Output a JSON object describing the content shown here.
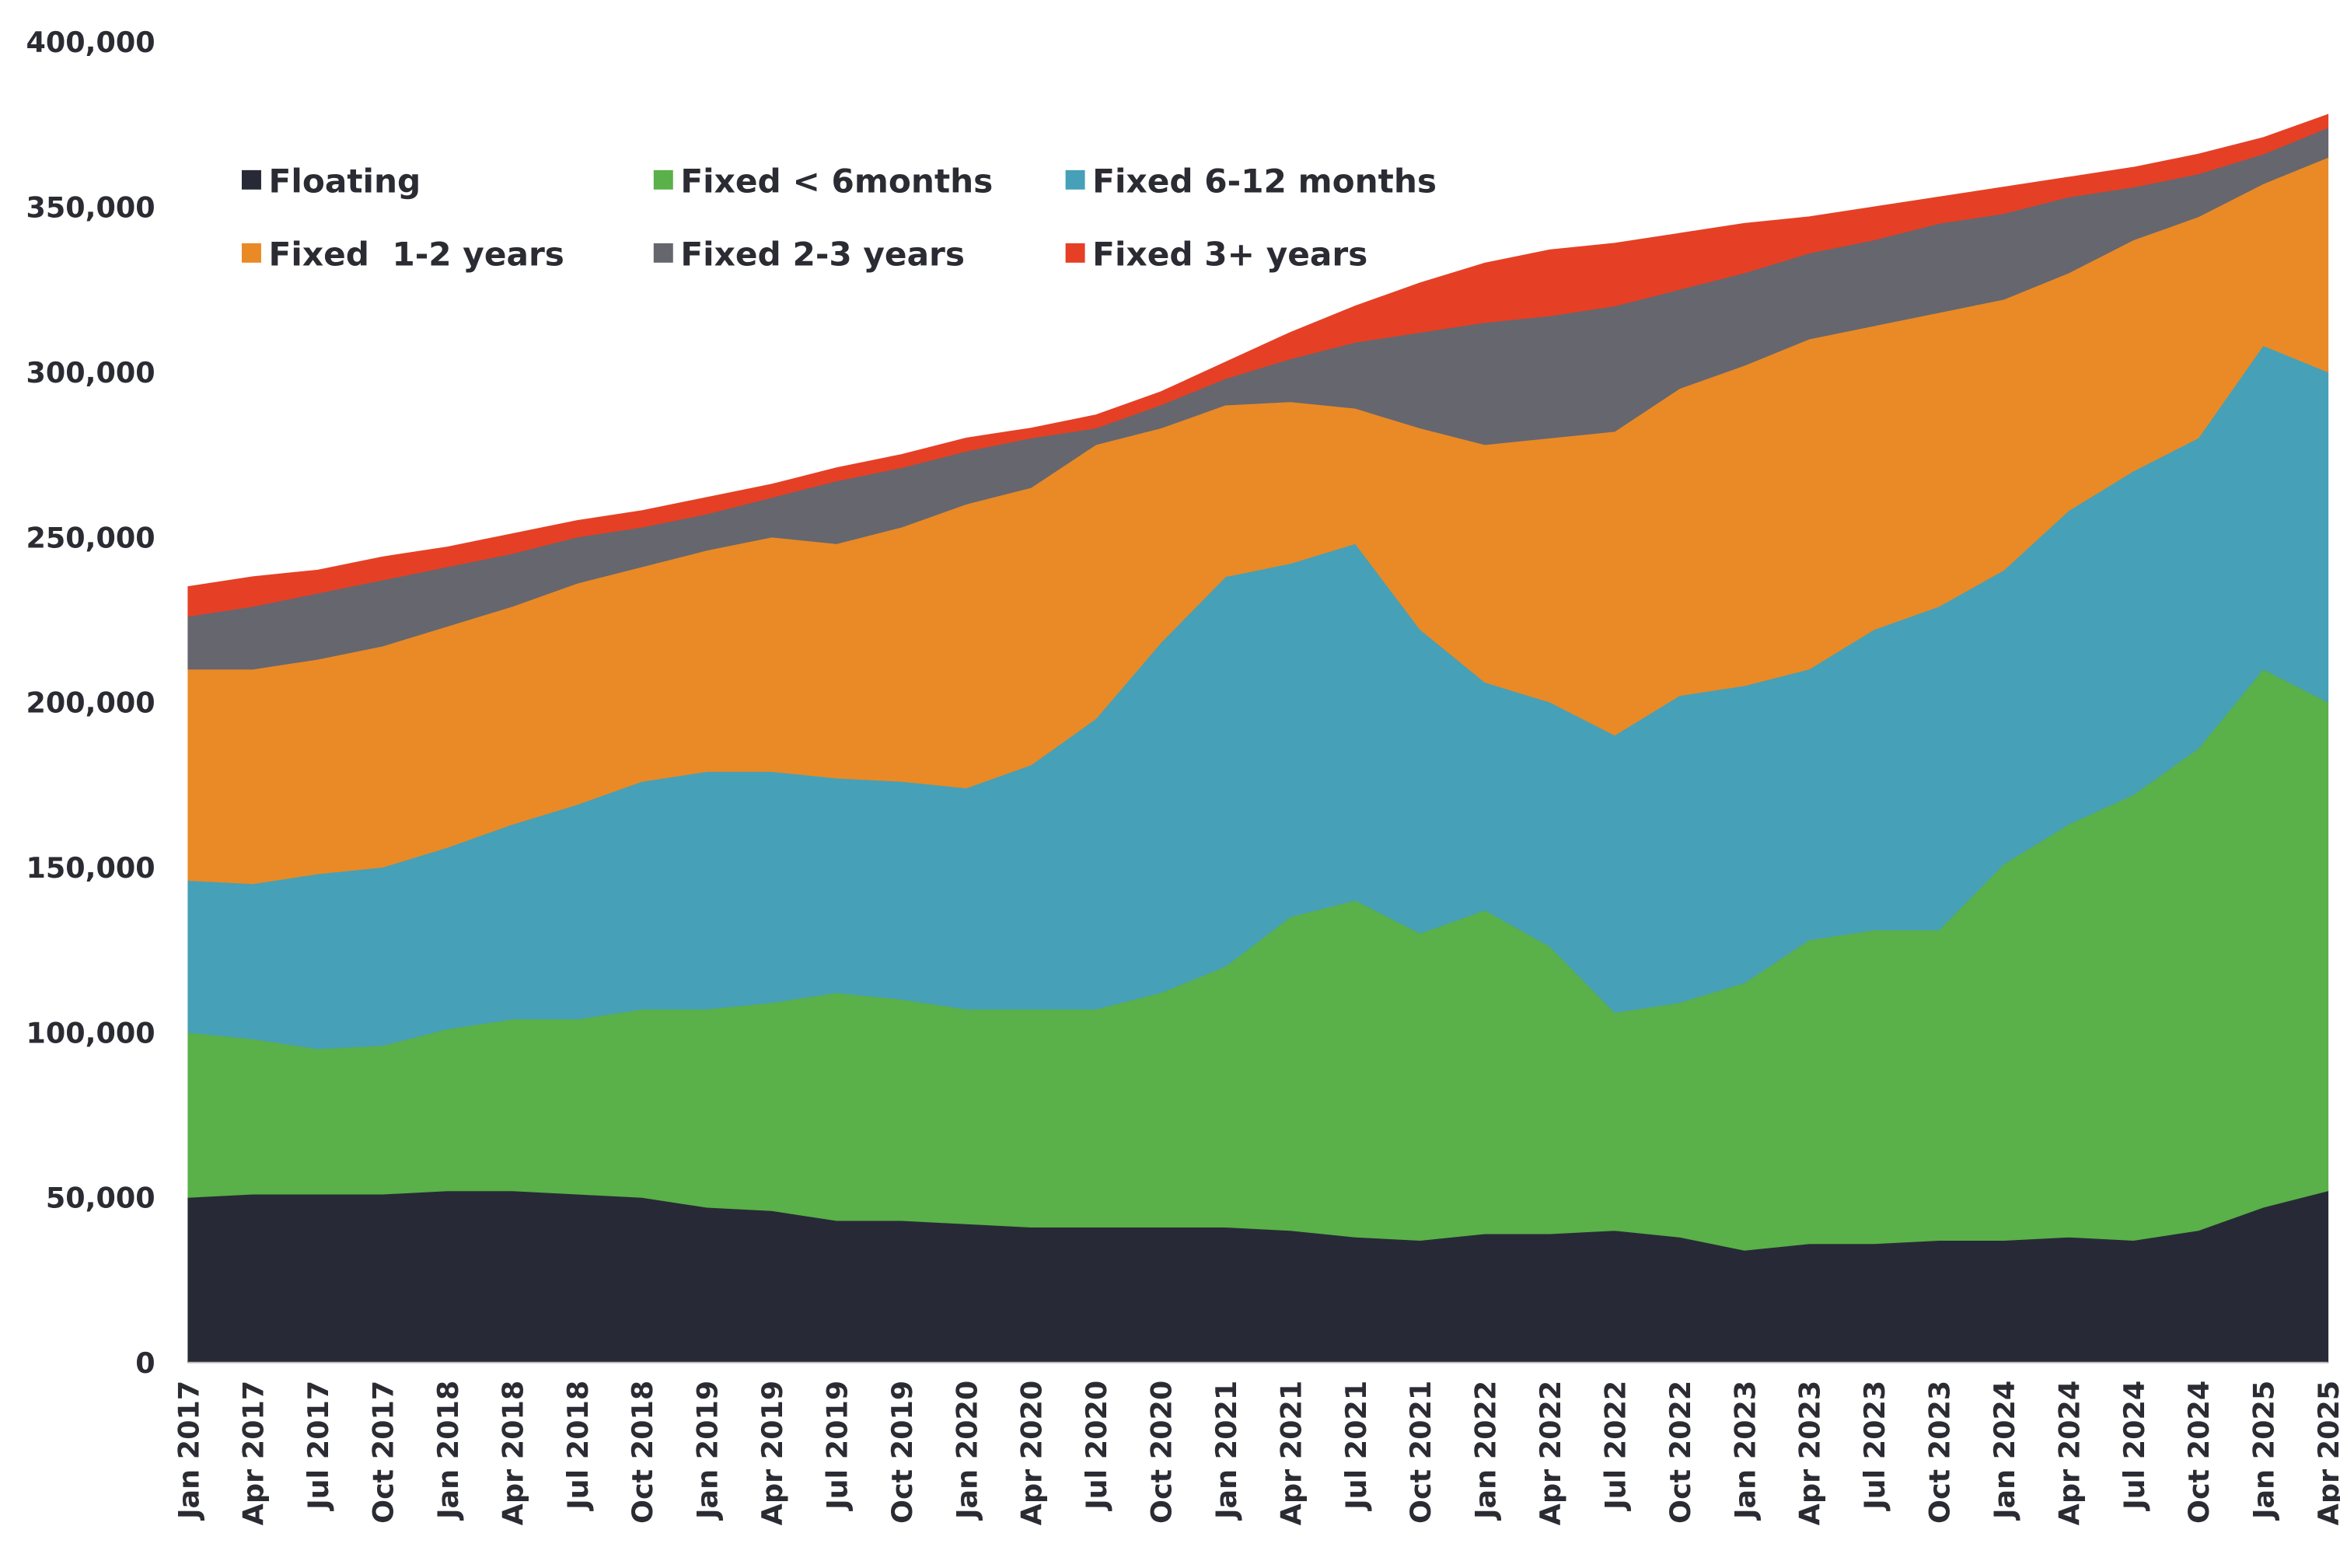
{
  "chart_data": {
    "type": "stacked_area",
    "categories": [
      "Jan 2017",
      "Apr 2017",
      "Jul 2017",
      "Oct 2017",
      "Jan 2018",
      "Apr 2018",
      "Jul 2018",
      "Oct 2018",
      "Jan 2019",
      "Apr 2019",
      "Jul 2019",
      "Oct 2019",
      "Jan 2020",
      "Apr 2020",
      "Jul 2020",
      "Oct 2020",
      "Jan 2021",
      "Apr 2021",
      "Jul 2021",
      "Oct 2021",
      "Jan 2022",
      "Apr 2022",
      "Jul 2022",
      "Oct 2022",
      "Jan 2023",
      "Apr 2023",
      "Jul 2023",
      "Oct 2023",
      "Jan 2024",
      "Apr 2024",
      "Jul 2024",
      "Oct 2024",
      "Jan 2025",
      "Apr 2025"
    ],
    "series": [
      {
        "name": "Floating",
        "color": "#272a36",
        "values": [
          50000,
          51000,
          51000,
          51000,
          52000,
          52000,
          51000,
          50000,
          47000,
          46000,
          43000,
          43000,
          42000,
          41000,
          41000,
          41000,
          41000,
          40000,
          38000,
          37000,
          39000,
          39000,
          40000,
          38000,
          34000,
          36000,
          36000,
          37000,
          37000,
          38000,
          37000,
          40000,
          47000,
          52000
        ]
      },
      {
        "name": "Fixed < 6months",
        "color": "#5ab049",
        "values": [
          50000,
          47000,
          44000,
          45000,
          49000,
          52000,
          53000,
          57000,
          60000,
          63000,
          69000,
          67000,
          65000,
          66000,
          66000,
          71000,
          79000,
          95000,
          102000,
          93000,
          98000,
          87000,
          66000,
          71000,
          81000,
          92000,
          95000,
          94000,
          114000,
          125000,
          135000,
          146000,
          163000,
          148000
        ]
      },
      {
        "name": "Fixed 6-12 months",
        "color": "#46a0b8",
        "values": [
          46000,
          47000,
          53000,
          54000,
          55000,
          59000,
          65000,
          69000,
          72000,
          70000,
          65000,
          66000,
          67000,
          74000,
          88000,
          106000,
          118000,
          107000,
          108000,
          92000,
          69000,
          74000,
          84000,
          93000,
          90000,
          82000,
          91000,
          98000,
          89000,
          95000,
          98000,
          94000,
          98000,
          100000
        ]
      },
      {
        "name": "Fixed  1-2 years",
        "color": "#e98a26",
        "values": [
          64000,
          65000,
          65000,
          67000,
          67000,
          66000,
          67000,
          65000,
          67000,
          71000,
          71000,
          77000,
          86000,
          84000,
          83000,
          65000,
          52000,
          49000,
          41000,
          61000,
          72000,
          80000,
          92000,
          93000,
          97000,
          100000,
          92000,
          89000,
          82000,
          72000,
          70000,
          67000,
          49000,
          65000
        ]
      },
      {
        "name": "Fixed 2-3 years",
        "color": "#66666e",
        "values": [
          16000,
          19000,
          20000,
          20000,
          18000,
          16000,
          14000,
          12000,
          11000,
          12000,
          19000,
          18000,
          16000,
          15000,
          5000,
          7000,
          8000,
          13000,
          20000,
          29000,
          37000,
          37000,
          38000,
          30000,
          28000,
          26000,
          26000,
          27000,
          26000,
          23000,
          16000,
          13000,
          9000,
          9000
        ]
      },
      {
        "name": "Fixed 3+ years",
        "color": "#e54025",
        "values": [
          9000,
          9000,
          7000,
          7000,
          6000,
          6000,
          5000,
          5000,
          5000,
          4000,
          4000,
          4000,
          4000,
          3000,
          4000,
          4000,
          5000,
          8000,
          11000,
          15000,
          18000,
          20000,
          19000,
          17000,
          15000,
          11000,
          10000,
          8000,
          8000,
          6000,
          6000,
          6000,
          5000,
          4000
        ]
      }
    ],
    "ylim": [
      0,
      400000
    ],
    "yticks": [
      0,
      {
        "value": 50000,
        "label": "50,000"
      },
      {
        "value": 100000,
        "label": "100,000"
      },
      {
        "value": 150000,
        "label": "150,000"
      },
      {
        "value": 200000,
        "label": "200,000"
      },
      {
        "value": 250000,
        "label": "250,000"
      },
      {
        "value": 300000,
        "label": "300,000"
      },
      {
        "value": 350000,
        "label": "350,000"
      },
      {
        "value": 400000,
        "label": "400,000"
      }
    ],
    "legend": "top-left"
  }
}
